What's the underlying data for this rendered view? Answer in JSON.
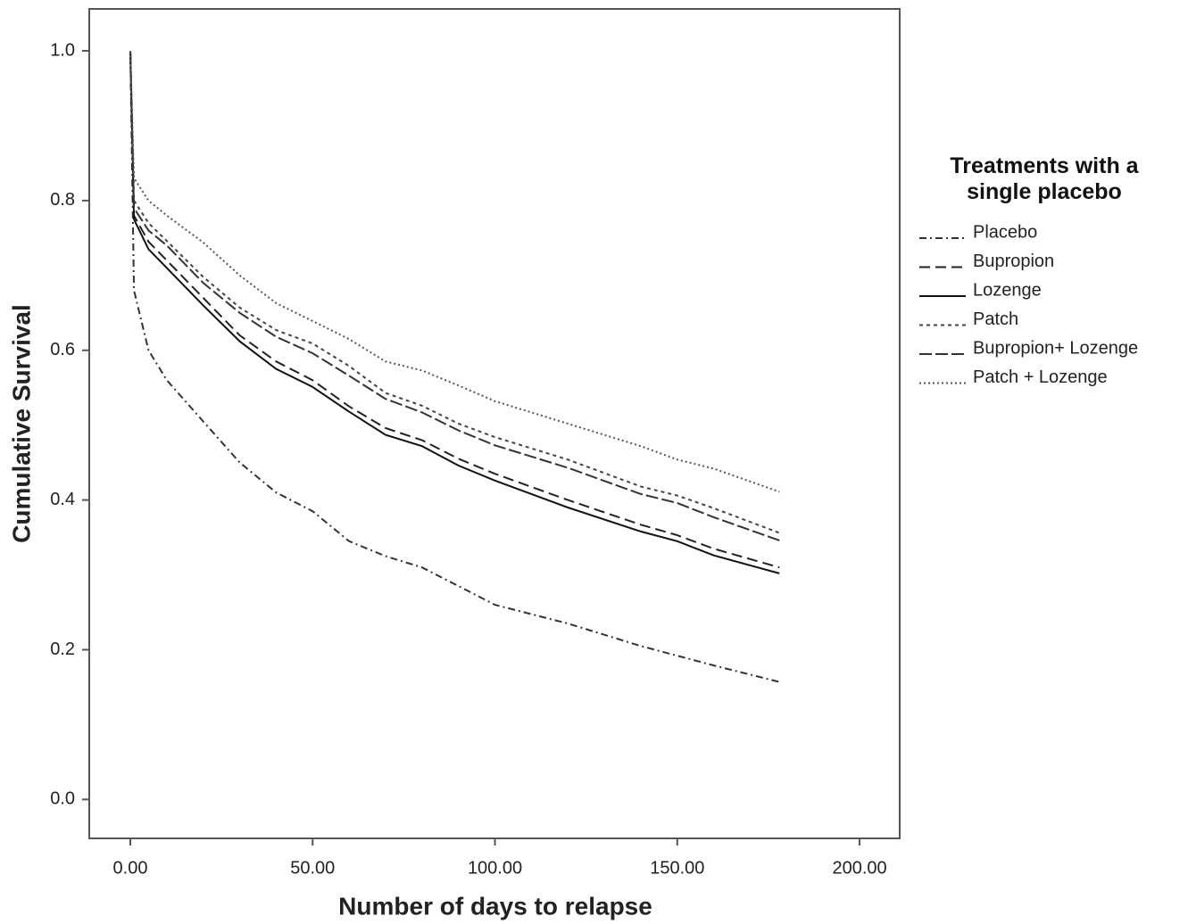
{
  "chart_data": {
    "type": "line",
    "x_label": "Number of days to relapse",
    "y_label": "Cumulative Survival",
    "legend_title": "Treatments with a single placebo",
    "legend_position": "right",
    "x": [
      0,
      1,
      5,
      10,
      20,
      30,
      40,
      50,
      60,
      70,
      80,
      90,
      100,
      120,
      140,
      150,
      160,
      178
    ],
    "series": [
      {
        "name": "Placebo",
        "color": "#333333",
        "dash": "8,4,2,4",
        "values": [
          1.0,
          0.68,
          0.6,
          0.56,
          0.505,
          0.45,
          0.41,
          0.385,
          0.345,
          0.325,
          0.31,
          0.285,
          0.26,
          0.235,
          0.205,
          0.192,
          0.179,
          0.157
        ]
      },
      {
        "name": "Bupropion",
        "color": "#222222",
        "dash": "12,6",
        "values": [
          1.0,
          0.78,
          0.745,
          0.72,
          0.67,
          0.62,
          0.585,
          0.56,
          0.525,
          0.496,
          0.48,
          0.455,
          0.435,
          0.4,
          0.367,
          0.353,
          0.335,
          0.31
        ]
      },
      {
        "name": "Lozenge",
        "color": "#111111",
        "dash": "none",
        "values": [
          1.0,
          0.775,
          0.735,
          0.71,
          0.66,
          0.612,
          0.575,
          0.551,
          0.518,
          0.487,
          0.472,
          0.446,
          0.426,
          0.39,
          0.358,
          0.345,
          0.326,
          0.302
        ]
      },
      {
        "name": "Patch",
        "color": "#444444",
        "dash": "4,4",
        "values": [
          1.0,
          0.8,
          0.77,
          0.746,
          0.698,
          0.657,
          0.627,
          0.609,
          0.579,
          0.543,
          0.526,
          0.502,
          0.484,
          0.454,
          0.418,
          0.406,
          0.389,
          0.356
        ]
      },
      {
        "name": "Bupropion+ Lozenge",
        "color": "#333333",
        "dash": "14,4",
        "values": [
          1.0,
          0.79,
          0.76,
          0.74,
          0.69,
          0.65,
          0.618,
          0.596,
          0.566,
          0.535,
          0.517,
          0.493,
          0.473,
          0.443,
          0.408,
          0.396,
          0.377,
          0.346
        ]
      },
      {
        "name": "Patch + Lozenge",
        "color": "#555555",
        "dash": "2,3",
        "values": [
          1.0,
          0.83,
          0.8,
          0.78,
          0.744,
          0.7,
          0.663,
          0.639,
          0.615,
          0.585,
          0.573,
          0.553,
          0.532,
          0.502,
          0.472,
          0.454,
          0.442,
          0.411
        ]
      }
    ],
    "xlim": [
      -11.26,
      211.0
    ],
    "ylim": [
      -0.052,
      1.056
    ],
    "xticks": [
      {
        "value": 0,
        "label": "0.00"
      },
      {
        "value": 50,
        "label": "50.00"
      },
      {
        "value": 100,
        "label": "100.00"
      },
      {
        "value": 150,
        "label": "150.00"
      },
      {
        "value": 200,
        "label": "200.00"
      }
    ],
    "yticks": [
      {
        "value": 0,
        "label": "0.0"
      },
      0.2,
      0.4,
      0.6,
      0.8,
      {
        "value": 1,
        "label": "1.0"
      }
    ],
    "grid": false
  }
}
